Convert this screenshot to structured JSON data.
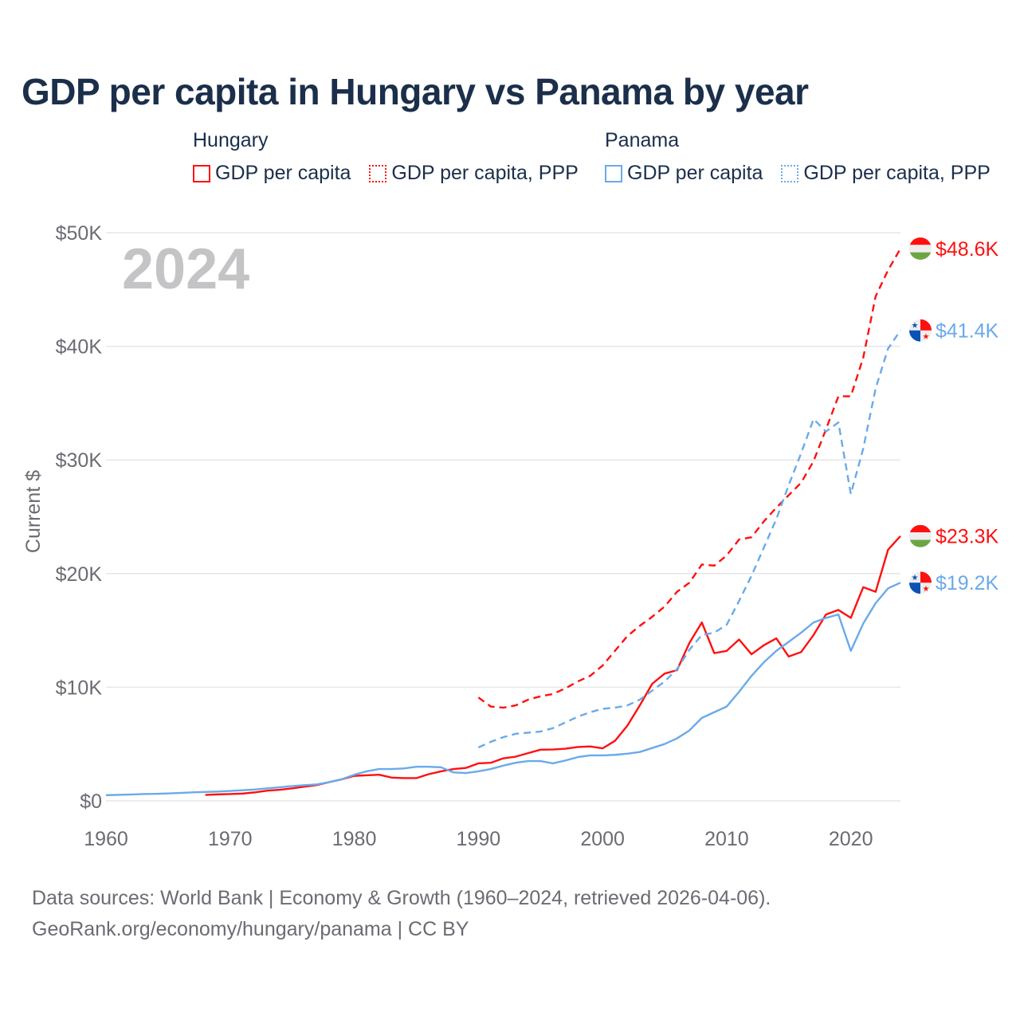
{
  "title": "GDP per capita in Hungary vs Panama by year",
  "legend": [
    {
      "group": "Hungary",
      "items": [
        {
          "label": "GDP per capita",
          "style": "solid"
        },
        {
          "label": "GDP per capita, PPP",
          "style": "dotted"
        }
      ],
      "color": "#ff1010"
    },
    {
      "group": "Panama",
      "items": [
        {
          "label": "GDP per capita",
          "style": "solid"
        },
        {
          "label": "GDP per capita, PPP",
          "style": "dotted"
        }
      ],
      "color": "#6aaaea"
    }
  ],
  "footer": {
    "line1": "Data sources: World Bank | Economy & Growth (1960–2024, retrieved 2026-04-06).",
    "line2": "GeoRank.org/economy/hungary/panama | CC BY"
  },
  "chart_data": {
    "type": "line",
    "title": "GDP per capita in Hungary vs Panama by year",
    "ylabel": "Current $",
    "xlabel": "",
    "year_watermark": "2024",
    "xlim": [
      1960,
      2024
    ],
    "ylim": [
      0,
      50000
    ],
    "xticks": [
      1960,
      1970,
      1980,
      1990,
      2000,
      2010,
      2020
    ],
    "xtick_labels": [
      "1960",
      "1970",
      "1980",
      "1990",
      "2000",
      "2010",
      "2020"
    ],
    "yticks": [
      0,
      10000,
      20000,
      30000,
      40000,
      50000
    ],
    "ytick_labels": [
      "$0",
      "$10K",
      "$20K",
      "$30K",
      "$40K",
      "$50K"
    ],
    "grid": true,
    "legend_position": "top",
    "series": [
      {
        "name": "Hungary GDP per capita",
        "country": "Hungary",
        "dashed": false,
        "color": "#ff1010",
        "end_label": "$23.3K",
        "start": 1968,
        "values_k": [
          0.52,
          0.57,
          0.6,
          0.64,
          0.75,
          0.9,
          0.98,
          1.1,
          1.25,
          1.4,
          1.65,
          1.9,
          2.2,
          2.25,
          2.3,
          2.05,
          2.0,
          2.0,
          2.35,
          2.6,
          2.8,
          2.9,
          3.3,
          3.35,
          3.74,
          3.89,
          4.2,
          4.5,
          4.52,
          4.59,
          4.74,
          4.79,
          4.62,
          5.28,
          6.62,
          8.4,
          10.3,
          11.2,
          11.5,
          13.9,
          15.7,
          13.0,
          13.2,
          14.2,
          12.9,
          13.7,
          14.3,
          12.7,
          13.1,
          14.6,
          16.4,
          16.8,
          16.1,
          18.8,
          18.4,
          22.1,
          23.3
        ]
      },
      {
        "name": "Hungary GDP per capita, PPP",
        "country": "Hungary",
        "dashed": true,
        "color": "#ff1010",
        "end_label": "$48.6K",
        "start": 1990,
        "values_k": [
          9.1,
          8.3,
          8.2,
          8.4,
          8.9,
          9.2,
          9.4,
          9.9,
          10.5,
          11.0,
          11.9,
          13.2,
          14.5,
          15.4,
          16.2,
          17.1,
          18.4,
          19.2,
          20.8,
          20.7,
          21.6,
          23.0,
          23.2,
          24.6,
          25.8,
          26.9,
          28.0,
          29.9,
          32.7,
          35.6,
          35.6,
          39.0,
          44.4,
          46.7,
          48.6
        ]
      },
      {
        "name": "Panama GDP per capita",
        "country": "Panama",
        "dashed": false,
        "color": "#6aaaea",
        "end_label": "$19.2K",
        "start": 1960,
        "values_k": [
          0.5,
          0.53,
          0.56,
          0.6,
          0.62,
          0.65,
          0.7,
          0.75,
          0.78,
          0.82,
          0.87,
          0.93,
          1.0,
          1.1,
          1.2,
          1.3,
          1.38,
          1.45,
          1.65,
          1.9,
          2.3,
          2.6,
          2.8,
          2.8,
          2.85,
          3.0,
          3.0,
          2.95,
          2.5,
          2.45,
          2.6,
          2.8,
          3.1,
          3.35,
          3.5,
          3.5,
          3.3,
          3.55,
          3.85,
          4.0,
          4.0,
          4.05,
          4.15,
          4.3,
          4.65,
          5.0,
          5.5,
          6.2,
          7.3,
          7.8,
          8.3,
          9.6,
          11.0,
          12.2,
          13.2,
          14.0,
          14.8,
          15.7,
          16.1,
          16.4,
          13.2,
          15.6,
          17.4,
          18.7,
          19.2
        ]
      },
      {
        "name": "Panama GDP per capita, PPP",
        "country": "Panama",
        "dashed": true,
        "color": "#6aaaea",
        "end_label": "$41.4K",
        "start": 1990,
        "values_k": [
          4.7,
          5.2,
          5.6,
          5.9,
          6.0,
          6.1,
          6.4,
          6.9,
          7.4,
          7.8,
          8.1,
          8.2,
          8.4,
          8.9,
          9.7,
          10.5,
          11.6,
          13.3,
          14.6,
          14.8,
          15.5,
          17.6,
          19.8,
          22.3,
          24.8,
          27.8,
          30.6,
          33.6,
          32.5,
          33.3,
          27.0,
          31.0,
          36.3,
          39.8,
          41.4
        ]
      }
    ]
  }
}
